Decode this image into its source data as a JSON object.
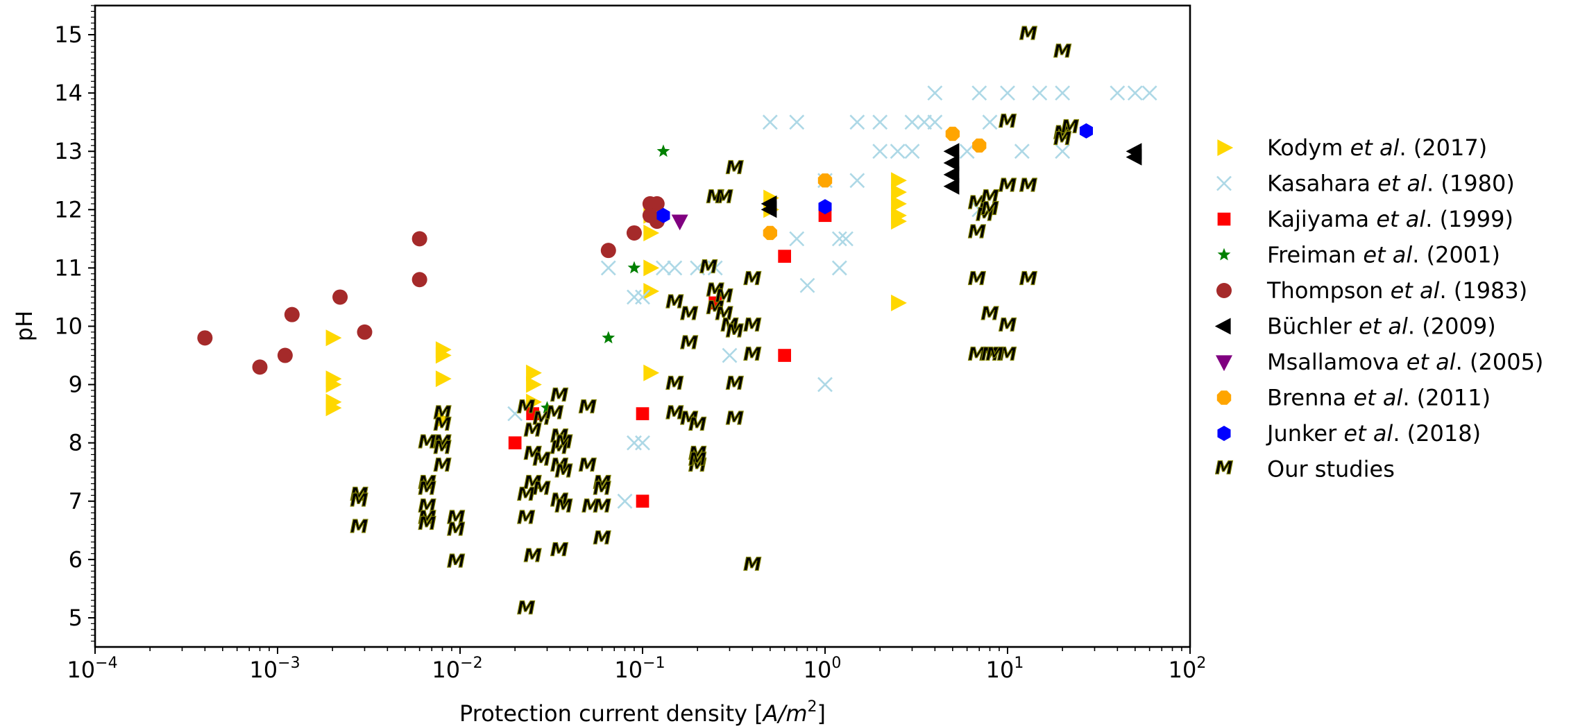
{
  "chart_data": {
    "type": "scatter",
    "xscale": "log",
    "xlabel_main": "Protection current density [",
    "xlabel_unit_num": "A/m",
    "xlabel_unit_exp": "2",
    "xlabel_close": "]",
    "ylabel": "pH",
    "xlim": [
      0.0001,
      100
    ],
    "ylim": [
      4.5,
      15.5
    ],
    "x_ticks": [
      {
        "value": 0.0001,
        "base": "10",
        "exp": "−4"
      },
      {
        "value": 0.001,
        "base": "10",
        "exp": "−3"
      },
      {
        "value": 0.01,
        "base": "10",
        "exp": "−2"
      },
      {
        "value": 0.1,
        "base": "10",
        "exp": "−1"
      },
      {
        "value": 1,
        "base": "10",
        "exp": "0"
      },
      {
        "value": 10,
        "base": "10",
        "exp": "1"
      },
      {
        "value": 100,
        "base": "10",
        "exp": "2"
      }
    ],
    "y_ticks": [
      5,
      6,
      7,
      8,
      9,
      10,
      11,
      12,
      13,
      14,
      15
    ],
    "legend_position": "outside-right",
    "series": [
      {
        "name": "Kodym",
        "year": "(2017)",
        "marker": "triangle-right",
        "color": "#FFD700",
        "points": [
          [
            0.002,
            9.8
          ],
          [
            0.002,
            9.1
          ],
          [
            0.002,
            9.0
          ],
          [
            0.002,
            8.7
          ],
          [
            0.002,
            8.6
          ],
          [
            0.008,
            9.6
          ],
          [
            0.008,
            9.5
          ],
          [
            0.008,
            9.1
          ],
          [
            0.008,
            8.4
          ],
          [
            0.025,
            9.2
          ],
          [
            0.025,
            9.0
          ],
          [
            0.025,
            8.7
          ],
          [
            0.11,
            11.9
          ],
          [
            0.11,
            11.6
          ],
          [
            0.11,
            11.0
          ],
          [
            0.11,
            10.6
          ],
          [
            0.11,
            9.2
          ],
          [
            0.5,
            12.2
          ],
          [
            0.5,
            12.0
          ],
          [
            2.5,
            12.5
          ],
          [
            2.5,
            12.3
          ],
          [
            2.5,
            12.1
          ],
          [
            2.5,
            11.9
          ],
          [
            2.5,
            11.8
          ],
          [
            2.5,
            10.4
          ]
        ]
      },
      {
        "name": "Kasahara",
        "year": "(1980)",
        "marker": "x",
        "color": "#ADD8E6",
        "points": [
          [
            0.02,
            8.5
          ],
          [
            0.065,
            11.0
          ],
          [
            0.08,
            7.0
          ],
          [
            0.09,
            8.0
          ],
          [
            0.1,
            8.0
          ],
          [
            0.09,
            10.5
          ],
          [
            0.1,
            10.5
          ],
          [
            0.13,
            11.0
          ],
          [
            0.15,
            11.0
          ],
          [
            0.2,
            11.0
          ],
          [
            0.25,
            11.0
          ],
          [
            0.3,
            9.5
          ],
          [
            0.5,
            13.5
          ],
          [
            0.7,
            13.5
          ],
          [
            0.7,
            11.5
          ],
          [
            0.8,
            10.7
          ],
          [
            1.0,
            12.5
          ],
          [
            1.0,
            9.0
          ],
          [
            1.2,
            11.5
          ],
          [
            1.2,
            11.0
          ],
          [
            1.3,
            11.5
          ],
          [
            1.5,
            13.5
          ],
          [
            1.5,
            12.5
          ],
          [
            2.0,
            13.5
          ],
          [
            2.0,
            13.0
          ],
          [
            2.5,
            13.0
          ],
          [
            3.0,
            13.5
          ],
          [
            3.0,
            13.0
          ],
          [
            3.5,
            13.5
          ],
          [
            4.0,
            13.5
          ],
          [
            4.0,
            14.0
          ],
          [
            6.0,
            13.0
          ],
          [
            7.0,
            14.0
          ],
          [
            8.0,
            13.5
          ],
          [
            7.0,
            12.0
          ],
          [
            10.0,
            14.0
          ],
          [
            12.0,
            13.0
          ],
          [
            15.0,
            14.0
          ],
          [
            20.0,
            14.0
          ],
          [
            20.0,
            13.0
          ],
          [
            40.0,
            14.0
          ],
          [
            50.0,
            14.0
          ],
          [
            60.0,
            14.0
          ]
        ]
      },
      {
        "name": "Kajiyama",
        "year": "(1999)",
        "marker": "square",
        "color": "#FF0000",
        "points": [
          [
            0.02,
            8.0
          ],
          [
            0.025,
            8.5
          ],
          [
            0.1,
            8.5
          ],
          [
            0.1,
            7.0
          ],
          [
            0.25,
            10.4
          ],
          [
            0.6,
            11.2
          ],
          [
            0.6,
            9.5
          ],
          [
            1.0,
            11.9
          ]
        ]
      },
      {
        "name": "Freiman",
        "year": "(2001)",
        "marker": "star",
        "color": "#008000",
        "points": [
          [
            0.03,
            8.6
          ],
          [
            0.065,
            9.8
          ],
          [
            0.09,
            11.0
          ],
          [
            0.13,
            13.0
          ]
        ]
      },
      {
        "name": "Thompson",
        "year": "(1983)",
        "marker": "circle",
        "color": "#A52A2A",
        "points": [
          [
            0.0004,
            9.8
          ],
          [
            0.0008,
            9.3
          ],
          [
            0.0011,
            9.5
          ],
          [
            0.0012,
            10.2
          ],
          [
            0.0022,
            10.5
          ],
          [
            0.003,
            9.9
          ],
          [
            0.006,
            11.5
          ],
          [
            0.006,
            10.8
          ],
          [
            0.065,
            11.3
          ],
          [
            0.09,
            11.6
          ],
          [
            0.11,
            12.1
          ],
          [
            0.12,
            12.1
          ],
          [
            0.12,
            11.8
          ],
          [
            0.11,
            11.9
          ]
        ]
      },
      {
        "name": "Büchler",
        "year": "(2009)",
        "marker": "triangle-left",
        "color": "#000000",
        "points": [
          [
            0.5,
            12.1
          ],
          [
            0.5,
            12.0
          ],
          [
            5.0,
            13.0
          ],
          [
            5.0,
            12.8
          ],
          [
            5.0,
            12.6
          ],
          [
            5.0,
            12.4
          ],
          [
            50.0,
            13.0
          ],
          [
            50.0,
            12.9
          ]
        ]
      },
      {
        "name": "Msallamova",
        "year": "(2005)",
        "marker": "triangle-down",
        "color": "#800080",
        "points": [
          [
            0.16,
            11.8
          ]
        ]
      },
      {
        "name": "Brenna",
        "year": "(2011)",
        "marker": "octagon",
        "color": "#FFA500",
        "points": [
          [
            0.5,
            11.6
          ],
          [
            1.0,
            12.5
          ],
          [
            5.0,
            13.3
          ],
          [
            7.0,
            13.1
          ]
        ]
      },
      {
        "name": "Junker",
        "year": "(2018)",
        "marker": "hexagon",
        "color": "#0000FF",
        "points": [
          [
            0.13,
            11.9
          ],
          [
            1.0,
            12.05
          ],
          [
            27.0,
            13.35
          ]
        ]
      },
      {
        "name": "Our studies",
        "year": "",
        "marker": "M",
        "color": "#808000",
        "points": [
          [
            0.0028,
            7.1
          ],
          [
            0.0028,
            7.0
          ],
          [
            0.0028,
            6.55
          ],
          [
            0.0066,
            8.0
          ],
          [
            0.0066,
            7.3
          ],
          [
            0.0066,
            7.2
          ],
          [
            0.0066,
            6.9
          ],
          [
            0.0066,
            6.7
          ],
          [
            0.0066,
            6.6
          ],
          [
            0.008,
            8.5
          ],
          [
            0.008,
            8.3
          ],
          [
            0.008,
            8.0
          ],
          [
            0.008,
            7.9
          ],
          [
            0.008,
            7.6
          ],
          [
            0.0095,
            6.7
          ],
          [
            0.0095,
            6.5
          ],
          [
            0.0095,
            5.95
          ],
          [
            0.023,
            8.6
          ],
          [
            0.023,
            7.1
          ],
          [
            0.023,
            6.7
          ],
          [
            0.023,
            5.15
          ],
          [
            0.025,
            8.2
          ],
          [
            0.025,
            7.8
          ],
          [
            0.025,
            7.3
          ],
          [
            0.025,
            6.05
          ],
          [
            0.028,
            8.4
          ],
          [
            0.028,
            7.7
          ],
          [
            0.028,
            7.2
          ],
          [
            0.033,
            8.5
          ],
          [
            0.035,
            8.8
          ],
          [
            0.035,
            8.1
          ],
          [
            0.035,
            7.9
          ],
          [
            0.035,
            7.6
          ],
          [
            0.035,
            7.0
          ],
          [
            0.035,
            6.15
          ],
          [
            0.037,
            8.0
          ],
          [
            0.037,
            7.5
          ],
          [
            0.037,
            6.9
          ],
          [
            0.05,
            8.6
          ],
          [
            0.05,
            7.6
          ],
          [
            0.052,
            6.9
          ],
          [
            0.06,
            7.3
          ],
          [
            0.06,
            7.2
          ],
          [
            0.06,
            6.9
          ],
          [
            0.06,
            6.35
          ],
          [
            0.15,
            10.4
          ],
          [
            0.15,
            9.0
          ],
          [
            0.15,
            8.5
          ],
          [
            0.18,
            10.2
          ],
          [
            0.18,
            9.7
          ],
          [
            0.18,
            8.4
          ],
          [
            0.2,
            7.6
          ],
          [
            0.2,
            7.6
          ],
          [
            0.2,
            7.8
          ],
          [
            0.2,
            7.7
          ],
          [
            0.2,
            8.3
          ],
          [
            0.23,
            11.0
          ],
          [
            0.25,
            12.2
          ],
          [
            0.25,
            10.6
          ],
          [
            0.25,
            10.3
          ],
          [
            0.28,
            12.2
          ],
          [
            0.28,
            10.5
          ],
          [
            0.28,
            10.2
          ],
          [
            0.3,
            10.0
          ],
          [
            0.32,
            12.7
          ],
          [
            0.32,
            9.9
          ],
          [
            0.32,
            9.0
          ],
          [
            0.32,
            8.4
          ],
          [
            0.4,
            10.8
          ],
          [
            0.4,
            10.0
          ],
          [
            0.4,
            9.5
          ],
          [
            0.4,
            5.9
          ],
          [
            6.8,
            12.1
          ],
          [
            6.8,
            11.6
          ],
          [
            6.8,
            10.8
          ],
          [
            6.8,
            9.5
          ],
          [
            7.5,
            11.9
          ],
          [
            8.0,
            12.2
          ],
          [
            8.0,
            12.0
          ],
          [
            8.0,
            10.2
          ],
          [
            8.0,
            9.5
          ],
          [
            10.0,
            13.5
          ],
          [
            10.0,
            12.4
          ],
          [
            10.0,
            10.0
          ],
          [
            10.0,
            9.5
          ],
          [
            13.0,
            15.0
          ],
          [
            13.0,
            12.4
          ],
          [
            13.0,
            10.8
          ],
          [
            20.0,
            14.7
          ],
          [
            20.0,
            13.3
          ],
          [
            20.0,
            13.2
          ],
          [
            22.0,
            13.4
          ],
          [
            8.5,
            9.5
          ]
        ]
      }
    ]
  }
}
